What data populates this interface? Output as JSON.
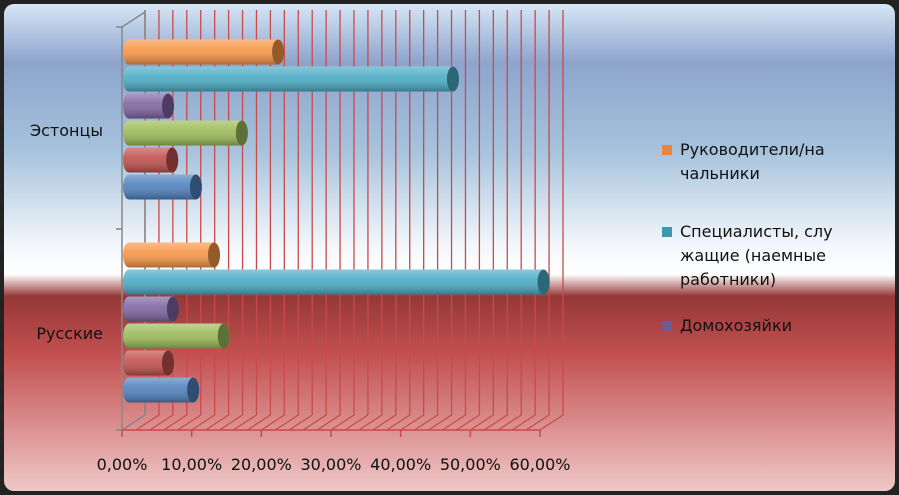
{
  "chart_data": {
    "type": "bar",
    "orientation": "horizontal",
    "style": "3d-cylinder",
    "categories": [
      "Эстонцы",
      "Русские"
    ],
    "xlim": [
      0,
      60
    ],
    "xticks": [
      "0,00%",
      "10,00%",
      "20,00%",
      "30,00%",
      "40,00%",
      "50,00%",
      "60,00%"
    ],
    "grid": true,
    "legend_position": "right",
    "series": [
      {
        "name": "Руководители/на чальники",
        "color": "#f79646",
        "values": [
          21.4,
          12.2
        ]
      },
      {
        "name": "Специалисты, слу жащие (наемные работники)",
        "color": "#4bacc6",
        "values": [
          46.5,
          59.5
        ]
      },
      {
        "name": "Домохозяйки",
        "color": "#8064a2",
        "values": [
          5.6,
          6.3
        ]
      },
      {
        "color": "#9bbb59",
        "values": [
          16.2,
          13.6
        ]
      },
      {
        "color": "#c0504d",
        "values": [
          6.2,
          5.6
        ]
      },
      {
        "color": "#4f81bd",
        "values": [
          9.6,
          9.2
        ]
      }
    ],
    "legend_visible": [
      {
        "lines": [
          "Руководители/на",
          "чальники"
        ],
        "color": "#e6873f"
      },
      {
        "lines": [
          "Специалисты, слу",
          "жащие (наемные",
          "работники)"
        ],
        "color": "#3c9aac"
      },
      {
        "lines": [
          "Домохозяйки"
        ],
        "color": "#6f5a96"
      }
    ]
  }
}
